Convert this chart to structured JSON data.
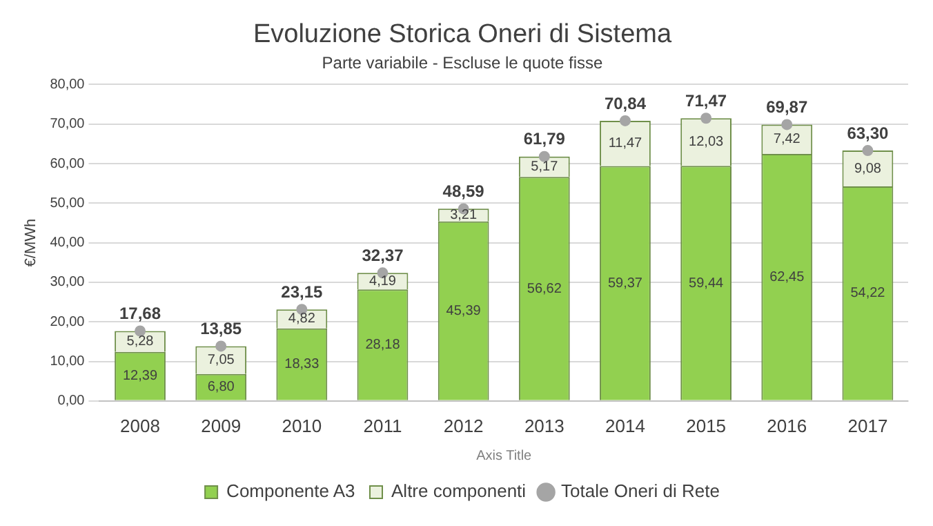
{
  "chart_data": {
    "type": "bar",
    "title": "Evoluzione Storica Oneri di Sistema",
    "subtitle": "Parte variabile - Escluse le quote fisse",
    "xlabel": "Axis Title",
    "ylabel": "€/MWh",
    "categories": [
      "2008",
      "2009",
      "2010",
      "2011",
      "2012",
      "2013",
      "2014",
      "2015",
      "2016",
      "2017"
    ],
    "stacked": true,
    "grid": "y",
    "legend": "bottom",
    "ylim": [
      0,
      80
    ],
    "yticks": [
      {
        "value": 0,
        "label": "0,00"
      },
      {
        "value": 10,
        "label": "10,00"
      },
      {
        "value": 20,
        "label": "20,00"
      },
      {
        "value": 30,
        "label": "30,00"
      },
      {
        "value": 40,
        "label": "40,00"
      },
      {
        "value": 50,
        "label": "50,00"
      },
      {
        "value": 60,
        "label": "60,00"
      },
      {
        "value": 70,
        "label": "70,00"
      },
      {
        "value": 80,
        "label": "80,00"
      }
    ],
    "series": [
      {
        "name": "Componente A3",
        "color": "#92d050",
        "values": [
          12.39,
          6.8,
          18.33,
          28.18,
          45.39,
          56.62,
          59.37,
          59.44,
          62.45,
          54.22
        ],
        "value_labels": [
          "12,39",
          "6,80",
          "18,33",
          "28,18",
          "45,39",
          "56,62",
          "59,37",
          "59,44",
          "62,45",
          "54,22"
        ]
      },
      {
        "name": "Altre componenti",
        "color": "#ebf1de",
        "values": [
          5.28,
          7.05,
          4.82,
          4.19,
          3.21,
          5.17,
          11.47,
          12.03,
          7.42,
          9.08
        ],
        "value_labels": [
          "5,28",
          "7,05",
          "4,82",
          "4,19",
          "3,21",
          "5,17",
          "11,47",
          "12,03",
          "7,42",
          "9,08"
        ]
      },
      {
        "name": "Totale Oneri di Rete",
        "type": "scatter",
        "marker": "circle",
        "color": "#a5a5a5",
        "values": [
          17.68,
          13.85,
          23.15,
          32.37,
          48.59,
          61.79,
          70.84,
          71.47,
          69.87,
          63.3
        ],
        "value_labels": [
          "17,68",
          "13,85",
          "23,15",
          "32,37",
          "48,59",
          "61,79",
          "70,84",
          "71,47",
          "69,87",
          "63,30"
        ]
      }
    ]
  }
}
